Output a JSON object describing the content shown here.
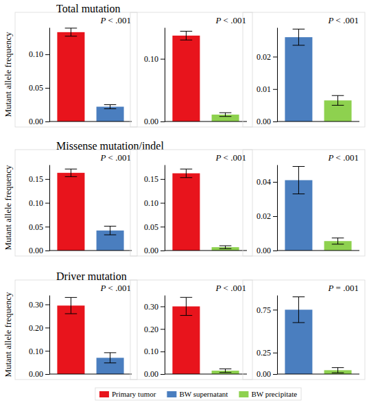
{
  "chart_data": [
    {
      "type": "bar",
      "title": "Total mutation",
      "y_label": "Mutant allele frequency",
      "annotation": "P < .001",
      "series": [
        {
          "name": "Primary tumor",
          "color": "#e8141c",
          "values": [
            0.133
          ],
          "errors": [
            0.006
          ]
        },
        {
          "name": "BW supernatant",
          "color": "#4a7ebf",
          "values": [
            0.022
          ],
          "errors": [
            0.003
          ]
        }
      ],
      "ylim": [
        0,
        0.14
      ],
      "yticks": [
        {
          "value": 0,
          "label": "0.00"
        },
        {
          "value": 0.05,
          "label": "0.05"
        },
        {
          "value": 0.1,
          "label": "0.10"
        }
      ],
      "tick_labels": "y"
    },
    {
      "type": "bar",
      "annotation": "P < .001",
      "series": [
        {
          "name": "Primary tumor",
          "color": "#e8141c",
          "values": [
            0.137
          ],
          "errors": [
            0.007
          ]
        },
        {
          "name": "BW precipitate",
          "color": "#8ed14f",
          "values": [
            0.011
          ],
          "errors": [
            0.003
          ]
        }
      ],
      "ylim": [
        0,
        0.15
      ],
      "yticks": [
        {
          "value": 0,
          "label": "0.00"
        },
        {
          "value": 0.1,
          "label": "0.10"
        }
      ],
      "tick_labels": "y"
    },
    {
      "type": "bar",
      "annotation": "P < .001",
      "series": [
        {
          "name": "BW supernatant",
          "color": "#4a7ebf",
          "values": [
            0.026
          ],
          "errors": [
            0.0025
          ]
        },
        {
          "name": "BW precipitate",
          "color": "#8ed14f",
          "values": [
            0.0065
          ],
          "errors": [
            0.0015
          ]
        }
      ],
      "ylim": [
        0,
        0.029
      ],
      "yticks": [
        {
          "value": 0,
          "label": "0.00"
        },
        {
          "value": 0.01,
          "label": "0.01"
        },
        {
          "value": 0.02,
          "label": "0.02"
        }
      ],
      "tick_labels": "y"
    },
    {
      "type": "bar",
      "title": "Missense mutation/indel",
      "y_label": "Mutant allele frequency",
      "annotation": "P < .001",
      "series": [
        {
          "name": "Primary tumor",
          "color": "#e8141c",
          "values": [
            0.163
          ],
          "errors": [
            0.008
          ]
        },
        {
          "name": "BW supernatant",
          "color": "#4a7ebf",
          "values": [
            0.042
          ],
          "errors": [
            0.009
          ]
        }
      ],
      "ylim": [
        0,
        0.18
      ],
      "yticks": [
        {
          "value": 0,
          "label": "0.00"
        },
        {
          "value": 0.05,
          "label": "0.05"
        },
        {
          "value": 0.1,
          "label": "0.10"
        },
        {
          "value": 0.15,
          "label": "0.15"
        }
      ],
      "tick_labels": "y"
    },
    {
      "type": "bar",
      "annotation": "P < .001",
      "series": [
        {
          "name": "Primary tumor",
          "color": "#e8141c",
          "values": [
            0.162
          ],
          "errors": [
            0.009
          ]
        },
        {
          "name": "BW precipitate",
          "color": "#8ed14f",
          "values": [
            0.007
          ],
          "errors": [
            0.003
          ]
        }
      ],
      "ylim": [
        0,
        0.18
      ],
      "yticks": [
        {
          "value": 0,
          "label": "0.00"
        },
        {
          "value": 0.05,
          "label": "0.05"
        },
        {
          "value": 0.1,
          "label": "0.10"
        },
        {
          "value": 0.15,
          "label": "0.15"
        }
      ],
      "tick_labels": "y"
    },
    {
      "type": "bar",
      "annotation": "P < .001",
      "series": [
        {
          "name": "BW supernatant",
          "color": "#4a7ebf",
          "values": [
            0.041
          ],
          "errors": [
            0.008
          ]
        },
        {
          "name": "BW precipitate",
          "color": "#8ed14f",
          "values": [
            0.0055
          ],
          "errors": [
            0.0018
          ]
        }
      ],
      "ylim": [
        0,
        0.05
      ],
      "yticks": [
        {
          "value": 0,
          "label": "0.00"
        },
        {
          "value": 0.02,
          "label": "0.02"
        },
        {
          "value": 0.04,
          "label": "0.04"
        }
      ],
      "tick_labels": "y"
    },
    {
      "type": "bar",
      "title": "Driver mutation",
      "y_label": "Mutant allele frequency",
      "annotation": "P < .001",
      "series": [
        {
          "name": "Primary tumor",
          "color": "#e8141c",
          "values": [
            0.295
          ],
          "errors": [
            0.035
          ]
        },
        {
          "name": "BW supernatant",
          "color": "#4a7ebf",
          "values": [
            0.07
          ],
          "errors": [
            0.022
          ]
        }
      ],
      "ylim": [
        0,
        0.34
      ],
      "yticks": [
        {
          "value": 0,
          "label": "0.00"
        },
        {
          "value": 0.1,
          "label": "0.10"
        },
        {
          "value": 0.2,
          "label": "0.20"
        },
        {
          "value": 0.3,
          "label": "0.30"
        }
      ],
      "tick_labels": "y"
    },
    {
      "type": "bar",
      "annotation": "P < .001",
      "series": [
        {
          "name": "Primary tumor",
          "color": "#e8141c",
          "values": [
            0.3
          ],
          "errors": [
            0.04
          ]
        },
        {
          "name": "BW precipitate",
          "color": "#8ed14f",
          "values": [
            0.015
          ],
          "errors": [
            0.008
          ]
        }
      ],
      "ylim": [
        0,
        0.35
      ],
      "yticks": [
        {
          "value": 0,
          "label": "0.00"
        },
        {
          "value": 0.1,
          "label": "0.10"
        },
        {
          "value": 0.2,
          "label": "0.20"
        },
        {
          "value": 0.3,
          "label": "0.30"
        }
      ],
      "tick_labels": "y"
    },
    {
      "type": "bar",
      "annotation": "P = .001",
      "series": [
        {
          "name": "BW supernatant",
          "color": "#4a7ebf",
          "values": [
            0.75
          ],
          "errors": [
            0.15
          ]
        },
        {
          "name": "BW precipitate",
          "color": "#8ed14f",
          "values": [
            0.045
          ],
          "errors": [
            0.03
          ]
        }
      ],
      "ylim": [
        0,
        0.92
      ],
      "yticks": [
        {
          "value": 0,
          "label": "0.00"
        },
        {
          "value": 0.25,
          "label": "0.25"
        },
        {
          "value": 0.75,
          "label": "0.75"
        }
      ],
      "tick_labels": "y"
    }
  ]
}
